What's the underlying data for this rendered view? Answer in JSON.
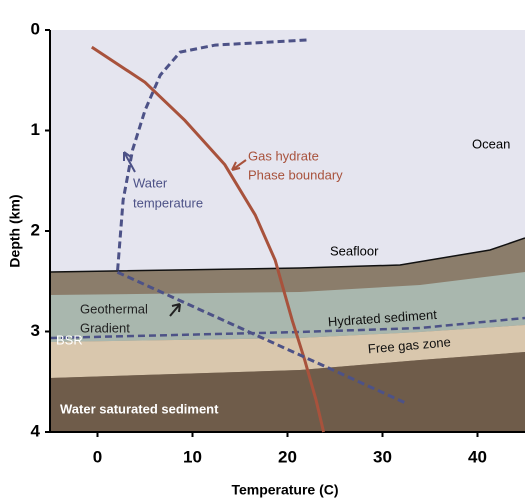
{
  "chart_data": {
    "type": "line",
    "x_label": "Temperature (C)",
    "y_label": "Depth (km)",
    "xlim": [
      -5,
      45
    ],
    "xticks": [
      0,
      10,
      20,
      30,
      40
    ],
    "ylim": [
      0,
      4
    ],
    "yticks": [
      0,
      1,
      2,
      3,
      4
    ],
    "y_inverted": true,
    "series": [
      {
        "color": "#4d5287",
        "dashed": true,
        "x": [
          22.0,
          12.4,
          8.7,
          6.6,
          5.0,
          3.7,
          2.7,
          2.1
        ],
        "values": [
          0.1,
          0.15,
          0.22,
          0.45,
          0.8,
          1.19,
          1.69,
          2.41
        ]
      },
      {
        "color": "#a8523c",
        "dashed": false,
        "x": [
          -0.6,
          5.0,
          9.2,
          13.4,
          16.6,
          18.7,
          20.5,
          21.8,
          23.0,
          23.8
        ],
        "values": [
          0.17,
          0.52,
          0.9,
          1.34,
          1.84,
          2.29,
          2.89,
          3.28,
          3.68,
          4.0
        ]
      },
      {
        "color": "#4d5287",
        "dashed": true,
        "x": [
          2.1,
          32.4
        ],
        "values": [
          2.41,
          3.71
        ]
      }
    ],
    "annotations": [
      "Ocean",
      "Gas hydrate",
      "Phase boundary",
      "Water",
      "temperature",
      "Seafloor",
      "Geothermal",
      "Gradient",
      "Hydrated sediment",
      "Free gas zone",
      "BSR",
      "Water saturated sediment"
    ]
  }
}
